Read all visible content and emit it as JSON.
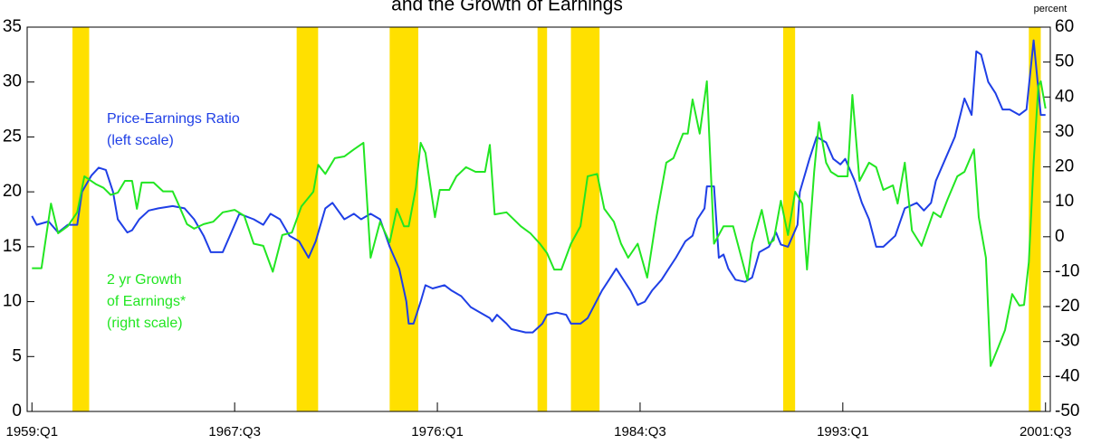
{
  "chart_data": {
    "type": "line",
    "title": "and the Growth of Earnings",
    "y2_unit_label": "percent",
    "xlim": [
      1958.8,
      2001.7
    ],
    "xticks": [
      {
        "value": 1959.0,
        "label": "1959:Q1"
      },
      {
        "value": 1967.5,
        "label": "1967:Q3"
      },
      {
        "value": 1976.0,
        "label": "1976:Q1"
      },
      {
        "value": 1984.5,
        "label": "1984:Q3"
      },
      {
        "value": 1993.0,
        "label": "1993:Q1"
      },
      {
        "value": 2001.5,
        "label": "2001:Q3"
      }
    ],
    "ylim": [
      0,
      35
    ],
    "yticks": [
      0,
      5,
      10,
      15,
      20,
      25,
      30,
      35
    ],
    "y2lim": [
      -50,
      60
    ],
    "y2ticks": [
      -50,
      -40,
      -30,
      -20,
      -10,
      0,
      10,
      20,
      30,
      40,
      50,
      60
    ],
    "shaded_color": "#ffe000",
    "shaded_periods": [
      [
        1960.7,
        1961.4
      ],
      [
        1970.1,
        1971.0
      ],
      [
        1974.0,
        1975.2
      ],
      [
        1980.2,
        1980.6
      ],
      [
        1981.6,
        1982.8
      ],
      [
        1990.5,
        1991.0
      ],
      [
        2000.8,
        2001.3
      ]
    ],
    "series": [
      {
        "label_lines": [
          "Price-Earnings Ratio",
          "(left scale)"
        ],
        "color": "#1f3fe6",
        "axis": "y",
        "x": [
          1959.0,
          1959.2,
          1959.7,
          1960.1,
          1960.5,
          1960.9,
          1961.1,
          1961.5,
          1961.8,
          1962.1,
          1962.4,
          1962.6,
          1963.0,
          1963.2,
          1963.5,
          1963.9,
          1964.3,
          1964.9,
          1965.4,
          1965.8,
          1966.2,
          1966.5,
          1967.0,
          1967.3,
          1967.7,
          1968.3,
          1968.7,
          1969.0,
          1969.4,
          1969.8,
          1970.2,
          1970.6,
          1970.9,
          1971.3,
          1971.6,
          1972.1,
          1972.5,
          1972.8,
          1973.2,
          1973.6,
          1974.0,
          1974.4,
          1974.6,
          1974.7,
          1974.8,
          1975.0,
          1975.3,
          1975.5,
          1975.8,
          1976.3,
          1976.6,
          1977.0,
          1977.4,
          1977.8,
          1978.2,
          1978.3,
          1978.5,
          1978.9,
          1979.1,
          1979.7,
          1980.0,
          1980.4,
          1980.6,
          1981.0,
          1981.4,
          1981.6,
          1982.0,
          1982.3,
          1982.9,
          1983.2,
          1983.5,
          1983.8,
          1984.1,
          1984.4,
          1984.7,
          1985.0,
          1985.4,
          1985.7,
          1986.0,
          1986.4,
          1986.7,
          1986.9,
          1987.2,
          1987.3,
          1987.6,
          1987.8,
          1988.0,
          1988.2,
          1988.5,
          1988.9,
          1989.2,
          1989.5,
          1989.9,
          1990.2,
          1990.4,
          1990.7,
          1991.1,
          1991.2,
          1991.6,
          1991.9,
          1992.3,
          1992.6,
          1992.9,
          1993.1,
          1993.5,
          1993.8,
          1994.1,
          1994.4,
          1994.7,
          1995.2,
          1995.6,
          1996.1,
          1996.4,
          1996.7,
          1996.9,
          1997.3,
          1997.7,
          1998.1,
          1998.4,
          1998.6,
          1998.8,
          1999.1,
          1999.4,
          1999.7,
          2000.0,
          2000.4,
          2000.7,
          2001.0,
          2001.3,
          2001.5
        ],
        "values": [
          17.8,
          17.0,
          17.3,
          16.3,
          17.0,
          17.0,
          20.0,
          21.5,
          22.2,
          22.0,
          20.0,
          17.5,
          16.3,
          16.5,
          17.5,
          18.3,
          18.5,
          18.7,
          18.5,
          17.5,
          16.0,
          14.5,
          14.5,
          16.0,
          18.0,
          17.5,
          17.0,
          18.0,
          17.5,
          16.0,
          15.5,
          14.0,
          15.5,
          18.5,
          19.0,
          17.5,
          18.0,
          17.5,
          18.0,
          17.5,
          15.0,
          13.0,
          11.0,
          10.0,
          8.0,
          8.0,
          10.0,
          11.5,
          11.2,
          11.5,
          11.0,
          10.5,
          9.5,
          9.0,
          8.5,
          8.2,
          8.8,
          8.0,
          7.5,
          7.2,
          7.2,
          8.0,
          8.8,
          9.0,
          8.8,
          8.0,
          8.0,
          8.5,
          11.0,
          12.0,
          13.0,
          12.0,
          11.0,
          9.7,
          10.0,
          11.0,
          12.0,
          13.0,
          14.0,
          15.5,
          16.0,
          17.5,
          18.5,
          20.5,
          20.5,
          14.0,
          14.3,
          13.0,
          12.0,
          11.8,
          12.2,
          14.5,
          15.0,
          16.3,
          15.2,
          15.0,
          17.0,
          20.0,
          23.0,
          25.0,
          24.5,
          23.0,
          22.5,
          23.0,
          21.0,
          19.0,
          17.5,
          15.0,
          15.0,
          16.0,
          18.5,
          19.0,
          18.3,
          19.0,
          21.0,
          23.0,
          25.0,
          28.5,
          27.0,
          32.8,
          32.5,
          30.0,
          29.0,
          27.5,
          27.5,
          27.0,
          27.5,
          33.8,
          27.0,
          27.0
        ]
      },
      {
        "label_lines": [
          "2 yr Growth",
          "of Earnings*",
          "(right scale)"
        ],
        "color": "#22e622",
        "axis": "y2",
        "x": [
          1959.0,
          1959.4,
          1959.8,
          1960.1,
          1960.5,
          1960.9,
          1961.2,
          1961.7,
          1962.0,
          1962.3,
          1962.6,
          1962.9,
          1963.2,
          1963.4,
          1963.6,
          1964.1,
          1964.5,
          1964.9,
          1965.1,
          1965.5,
          1965.8,
          1966.2,
          1966.6,
          1967.0,
          1967.5,
          1967.9,
          1968.3,
          1968.7,
          1969.1,
          1969.5,
          1969.9,
          1970.3,
          1970.8,
          1971.0,
          1971.3,
          1971.7,
          1972.1,
          1972.5,
          1972.9,
          1973.2,
          1973.6,
          1974.0,
          1974.3,
          1974.6,
          1974.8,
          1975.1,
          1975.3,
          1975.5,
          1975.9,
          1976.1,
          1976.5,
          1976.8,
          1977.2,
          1977.6,
          1978.0,
          1978.2,
          1978.4,
          1978.9,
          1979.5,
          1979.9,
          1980.3,
          1980.6,
          1980.9,
          1981.2,
          1981.6,
          1982.0,
          1982.3,
          1982.7,
          1983.0,
          1983.4,
          1983.7,
          1984.0,
          1984.4,
          1984.8,
          1985.2,
          1985.6,
          1985.9,
          1986.3,
          1986.5,
          1986.7,
          1987.0,
          1987.3,
          1987.6,
          1988.0,
          1988.4,
          1988.8,
          1989.0,
          1989.2,
          1989.6,
          1989.9,
          1990.1,
          1990.4,
          1990.7,
          1991.0,
          1991.3,
          1991.5,
          1991.8,
          1992.0,
          1992.3,
          1992.5,
          1992.8,
          1993.2,
          1993.4,
          1993.7,
          1994.1,
          1994.4,
          1994.7,
          1995.1,
          1995.3,
          1995.6,
          1995.9,
          1996.3,
          1996.8,
          1997.1,
          1997.4,
          1997.8,
          1998.1,
          1998.5,
          1998.7,
          1999.0,
          1999.2,
          1999.5,
          1999.8,
          2000.1,
          2000.4,
          2000.6,
          2000.8,
          2001.0,
          2001.2,
          2001.3,
          2001.5
        ],
        "values": [
          -9,
          -9,
          9.5,
          1,
          3,
          7,
          17.3,
          15,
          14,
          12,
          12.6,
          16,
          16,
          8,
          15.5,
          15.5,
          13,
          13,
          10,
          3.6,
          2.3,
          3.6,
          4.3,
          7,
          7.7,
          6,
          -2,
          -2.6,
          -10,
          0.5,
          1.2,
          8.7,
          12.9,
          20.6,
          18,
          22.5,
          23,
          25,
          26.9,
          -6,
          4.3,
          -1.6,
          8,
          3,
          3,
          14,
          26.9,
          24,
          5.6,
          13.4,
          13.4,
          17.3,
          19.9,
          18.6,
          18.6,
          26.3,
          6.4,
          7,
          3,
          1,
          -2,
          -4.7,
          -9.4,
          -9.4,
          -2,
          3,
          17.3,
          18,
          8,
          4.3,
          -2,
          -6,
          -2,
          -11.7,
          6.2,
          21.2,
          22.5,
          29.5,
          29.5,
          39.3,
          29.5,
          44.5,
          -2,
          3,
          3,
          -7.3,
          -12.5,
          -2,
          7.7,
          -2,
          -1,
          10.3,
          0.5,
          12.9,
          9.5,
          -9.4,
          18.6,
          32.8,
          21.2,
          18.6,
          17.3,
          17.3,
          40.6,
          16,
          21.2,
          19.9,
          13.4,
          14.7,
          9.5,
          21.2,
          1.8,
          -2.6,
          7,
          5.6,
          10.8,
          17.3,
          18.6,
          25,
          5.6,
          -6,
          -37,
          -31.9,
          -26.7,
          -16.4,
          -19.7,
          -19.5,
          -7.3,
          21.2,
          43.2,
          44.5,
          36.7
        ]
      }
    ]
  }
}
